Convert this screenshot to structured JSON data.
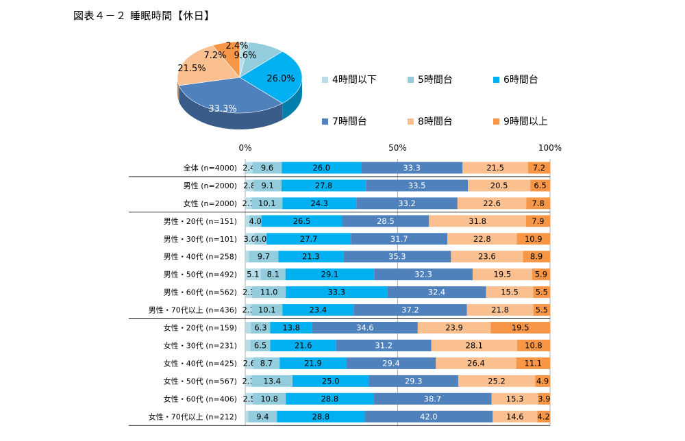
{
  "title": "図表４－２ 睡眠時間【休日】",
  "colors": [
    "#b6dde8",
    "#93cddd",
    "#00b0f0",
    "#4f81bd",
    "#fac090",
    "#f79646"
  ],
  "chart_data": [
    {
      "type": "pie",
      "categories": [
        "4時間以下",
        "5時間台",
        "6時間台",
        "7時間台",
        "8時間台",
        "9時間以上"
      ],
      "values": [
        2.4,
        9.6,
        26.0,
        33.3,
        21.5,
        7.2
      ],
      "labels": [
        "2.4%",
        "9.6%",
        "26.0%",
        "33.3%",
        "21.5%",
        "7.2%"
      ]
    },
    {
      "type": "bar",
      "stacked": true,
      "orientation": "horizontal",
      "x_ticks": [
        "0%",
        "50%",
        "100%"
      ],
      "xlim": [
        0,
        100
      ],
      "legend": [
        "4時間以下",
        "5時間台",
        "6時間台",
        "7時間台",
        "8時間台",
        "9時間以上"
      ],
      "rows": [
        {
          "label": "全体 (n=4000)",
          "values": [
            2.4,
            9.6,
            26.0,
            33.3,
            21.5,
            7.2
          ]
        },
        {
          "label": "男性 (n=2000)",
          "values": [
            2.8,
            9.1,
            27.8,
            33.5,
            20.5,
            6.5
          ]
        },
        {
          "label": "女性 (n=2000)",
          "values": [
            2.1,
            10.1,
            24.3,
            33.2,
            22.6,
            7.8
          ]
        },
        {
          "label": "男性・20代 (n=151)",
          "values": [
            1.3,
            4.0,
            26.5,
            28.5,
            31.8,
            7.9
          ],
          "shown": [
            "",
            "4.0",
            "26.5",
            "28.5",
            "31.8",
            "7.9"
          ]
        },
        {
          "label": "男性・30代 (n=101)",
          "values": [
            3.0,
            4.0,
            27.7,
            31.7,
            22.8,
            10.9
          ]
        },
        {
          "label": "男性・40代 (n=258)",
          "values": [
            1.2,
            9.7,
            21.3,
            35.3,
            23.6,
            8.9
          ],
          "shown": [
            "",
            "9.7",
            "21.3",
            "35.3",
            "23.6",
            "8.9"
          ]
        },
        {
          "label": "男性・50代 (n=492)",
          "values": [
            5.1,
            8.1,
            29.1,
            32.3,
            19.5,
            5.9
          ]
        },
        {
          "label": "男性・60代 (n=562)",
          "values": [
            2.3,
            11.0,
            33.3,
            32.4,
            15.5,
            5.5
          ]
        },
        {
          "label": "男性・70代以上 (n=436)",
          "values": [
            2.1,
            10.1,
            23.4,
            37.2,
            21.8,
            5.5
          ]
        },
        {
          "label": "女性・20代 (n=159)",
          "values": [
            1.9,
            6.3,
            13.8,
            34.6,
            23.9,
            19.5
          ],
          "shown": [
            "",
            "6.3",
            "13.8",
            "34.6",
            "23.9",
            "19.5"
          ]
        },
        {
          "label": "女性・30代 (n=231)",
          "values": [
            1.7,
            6.5,
            21.6,
            31.2,
            28.1,
            10.8
          ],
          "shown": [
            "",
            "6.5",
            "21.6",
            "31.2",
            "28.1",
            "10.8"
          ]
        },
        {
          "label": "女性・40代 (n=425)",
          "values": [
            2.6,
            8.7,
            21.9,
            29.4,
            26.4,
            11.1
          ]
        },
        {
          "label": "女性・50代 (n=567)",
          "values": [
            2.1,
            13.4,
            25.0,
            29.3,
            25.2,
            4.9
          ]
        },
        {
          "label": "女性・60代 (n=406)",
          "values": [
            2.5,
            10.8,
            28.8,
            38.7,
            15.3,
            3.9
          ]
        },
        {
          "label": "女性・70代以上 (n=212)",
          "values": [
            1.0,
            9.4,
            28.8,
            42.0,
            14.6,
            4.2
          ],
          "shown": [
            "",
            "9.4",
            "28.8",
            "42.0",
            "14.6",
            "4.2"
          ]
        }
      ]
    }
  ]
}
